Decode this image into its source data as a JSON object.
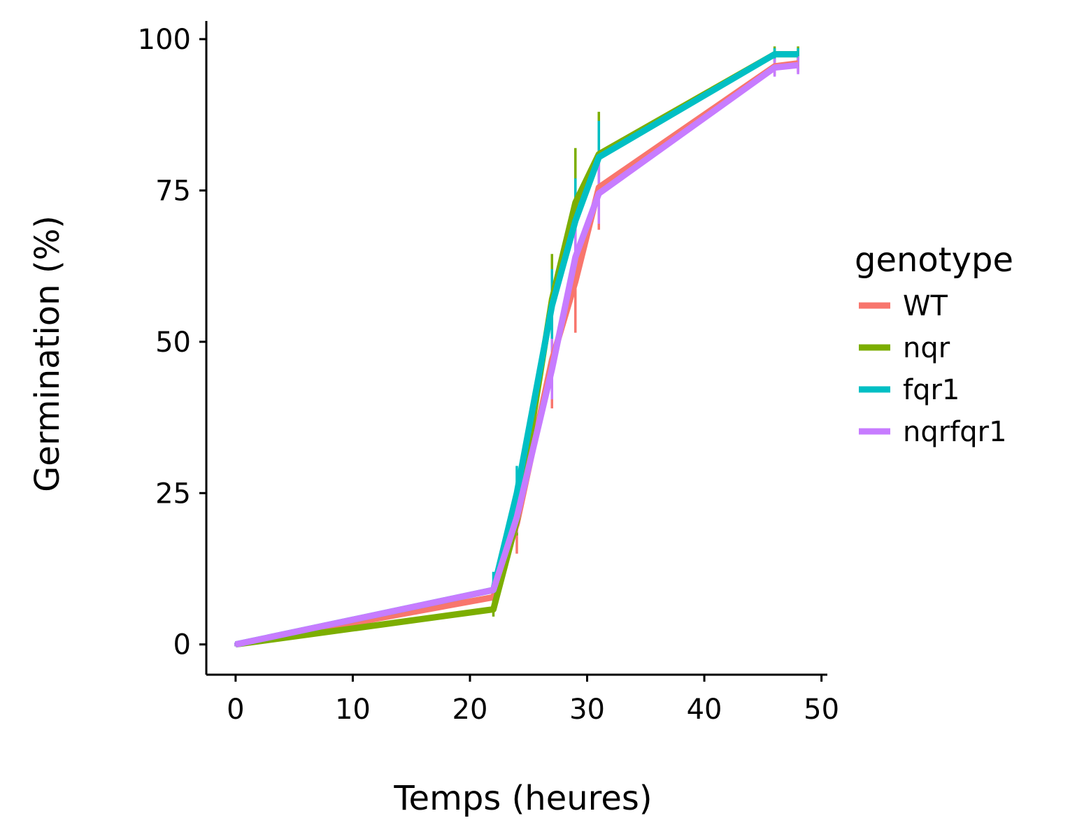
{
  "chart_data": {
    "type": "line",
    "title": "",
    "xlabel": "Temps (heures)",
    "ylabel": "Germination (%)",
    "xlim": [
      -2.5,
      50.5
    ],
    "ylim": [
      -5,
      103
    ],
    "x_ticks": [
      0,
      10,
      20,
      30,
      40,
      50
    ],
    "y_ticks": [
      0,
      25,
      50,
      75,
      100
    ],
    "grid": false,
    "legend": {
      "title": "genotype",
      "position": "right"
    },
    "x": [
      0,
      22,
      24,
      27,
      29,
      31,
      46,
      48
    ],
    "series": [
      {
        "name": "WT",
        "color": "#F8766D",
        "values": [
          0,
          7.8,
          20,
          47,
          60,
          75.5,
          95.5,
          96
        ],
        "error": [
          0.3,
          2,
          5,
          8,
          8.5,
          7,
          1.5,
          1.5
        ]
      },
      {
        "name": "nqr",
        "color": "#7CAE00",
        "values": [
          0,
          5.8,
          20.5,
          57,
          73,
          81,
          97.5,
          97.5
        ],
        "error": [
          0.3,
          1.2,
          2.5,
          7.5,
          9,
          7,
          1.3,
          1.3
        ]
      },
      {
        "name": "fqr1",
        "color": "#00BFC4",
        "values": [
          0,
          9,
          25,
          56,
          70,
          80.5,
          97.5,
          97.5
        ],
        "error": [
          0.3,
          3,
          4.5,
          6,
          7,
          6,
          1,
          1
        ]
      },
      {
        "name": "nqrfqr1",
        "color": "#C77CFF",
        "values": [
          0,
          9,
          21,
          45.5,
          64,
          74.5,
          95.3,
          95.7
        ],
        "error": [
          0.3,
          1.5,
          2.5,
          5,
          5,
          5,
          1.5,
          1.5
        ]
      }
    ]
  }
}
